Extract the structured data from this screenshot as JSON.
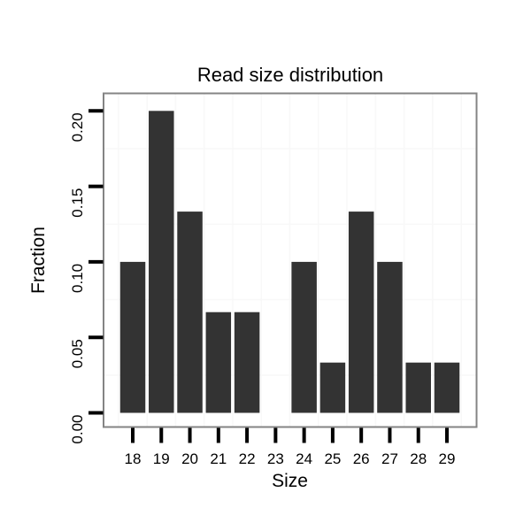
{
  "chart_data": {
    "type": "bar",
    "title": "Read size distribution",
    "xlabel": "Size",
    "ylabel": "Fraction",
    "categories": [
      "18",
      "19",
      "20",
      "21",
      "22",
      "23",
      "24",
      "25",
      "26",
      "27",
      "28",
      "29"
    ],
    "values": [
      0.1,
      0.2,
      0.1333,
      0.0667,
      0.0667,
      0,
      0.1,
      0.0333,
      0.1333,
      0.1,
      0.0333,
      0.0333
    ],
    "y_tick_values": [
      0,
      0.05,
      0.1,
      0.15,
      0.2
    ],
    "y_tick_labels": [
      "0.00",
      "0.05",
      "0.10",
      "0.15",
      "0.20"
    ],
    "ylim": [
      -0.0095,
      0.2115
    ],
    "legend": "none",
    "grid": {
      "horizontal_minor_lines_y": [
        0.025,
        0.075,
        0.125,
        0.175
      ],
      "vertical_lines": "category-boundaries"
    },
    "colors": {
      "bar": "#333333",
      "panel_border": "#848484",
      "gridline": "#f8f8f8",
      "tick": "#000000",
      "text": "#000000",
      "background": "#ffffff"
    }
  }
}
